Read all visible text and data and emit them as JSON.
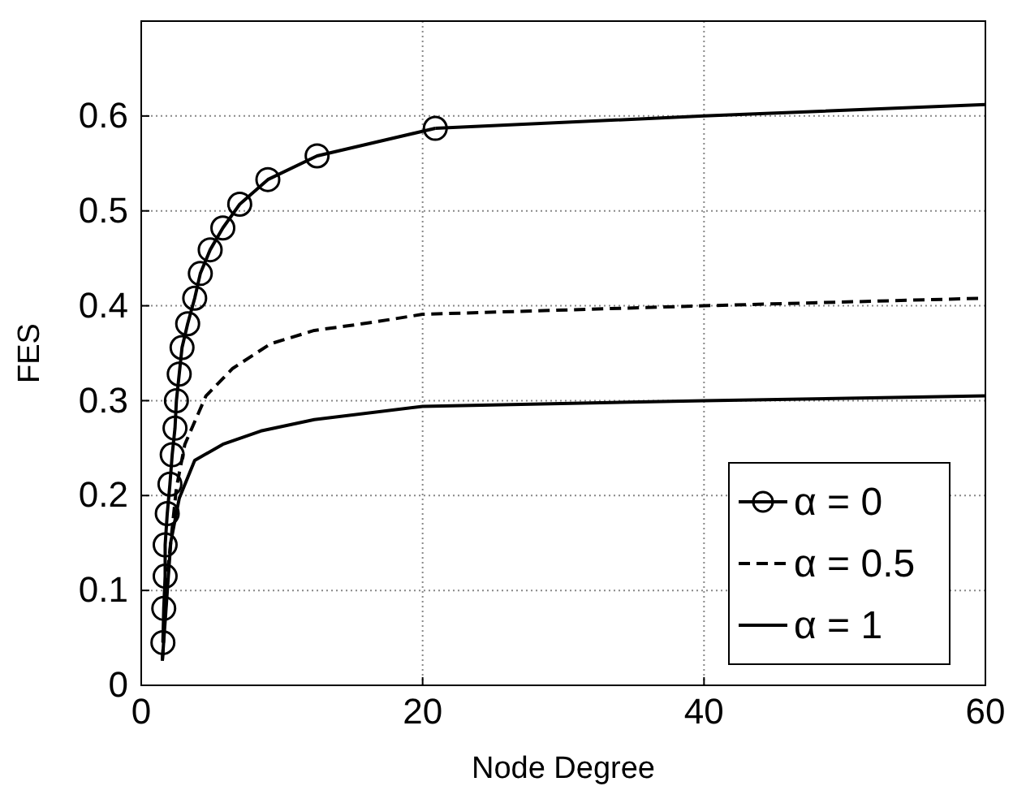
{
  "chart_data": {
    "type": "line",
    "xlabel": "Node Degree",
    "ylabel": "FES",
    "xlim": [
      0,
      60
    ],
    "xticks": [
      0,
      20,
      40,
      60
    ],
    "ylim": [
      0,
      0.7
    ],
    "yticks": [
      0,
      0.1,
      0.2,
      0.3,
      0.4,
      0.5,
      0.6
    ],
    "grid": true,
    "legend": "bottom right",
    "series": [
      {
        "name": "α = 0",
        "color": "#000000",
        "marker": "circle",
        "line_style": "solid",
        "x": [
          1.54,
          1.6,
          1.7,
          1.7,
          1.85,
          2.04,
          2.2,
          2.4,
          2.5,
          2.7,
          2.9,
          3.3,
          3.8,
          4.2,
          4.9,
          5.8,
          7.0,
          9.0,
          12.5,
          20.9
        ],
        "values": [
          0.045,
          0.081,
          0.115,
          0.148,
          0.181,
          0.212,
          0.243,
          0.271,
          0.3,
          0.328,
          0.356,
          0.381,
          0.408,
          0.434,
          0.459,
          0.482,
          0.507,
          0.533,
          0.558,
          0.587
        ]
      },
      {
        "color": "#000000",
        "marker": "none",
        "line_style": "solid",
        "x": [
          20.9,
          40,
          60
        ],
        "values": [
          0.587,
          0.6,
          0.612
        ]
      },
      {
        "name": "α = 0.5",
        "color": "#000000",
        "marker": "none",
        "line_style": "dashed",
        "x": [
          1.5,
          1.9,
          2.5,
          3.1,
          4.6,
          6.5,
          9.2,
          12.3,
          16.2,
          20,
          40,
          60
        ],
        "values": [
          0.026,
          0.123,
          0.208,
          0.254,
          0.305,
          0.334,
          0.36,
          0.374,
          0.382,
          0.391,
          0.4,
          0.408
        ]
      },
      {
        "name": "α = 1",
        "color": "#000000",
        "marker": "none",
        "line_style": "solid",
        "x": [
          1.5,
          2.1,
          2.7,
          3.8,
          5.8,
          8.5,
          12.3,
          20,
          40,
          60
        ],
        "values": [
          0.026,
          0.151,
          0.197,
          0.237,
          0.254,
          0.268,
          0.28,
          0.294,
          0.3,
          0.305
        ]
      }
    ]
  }
}
